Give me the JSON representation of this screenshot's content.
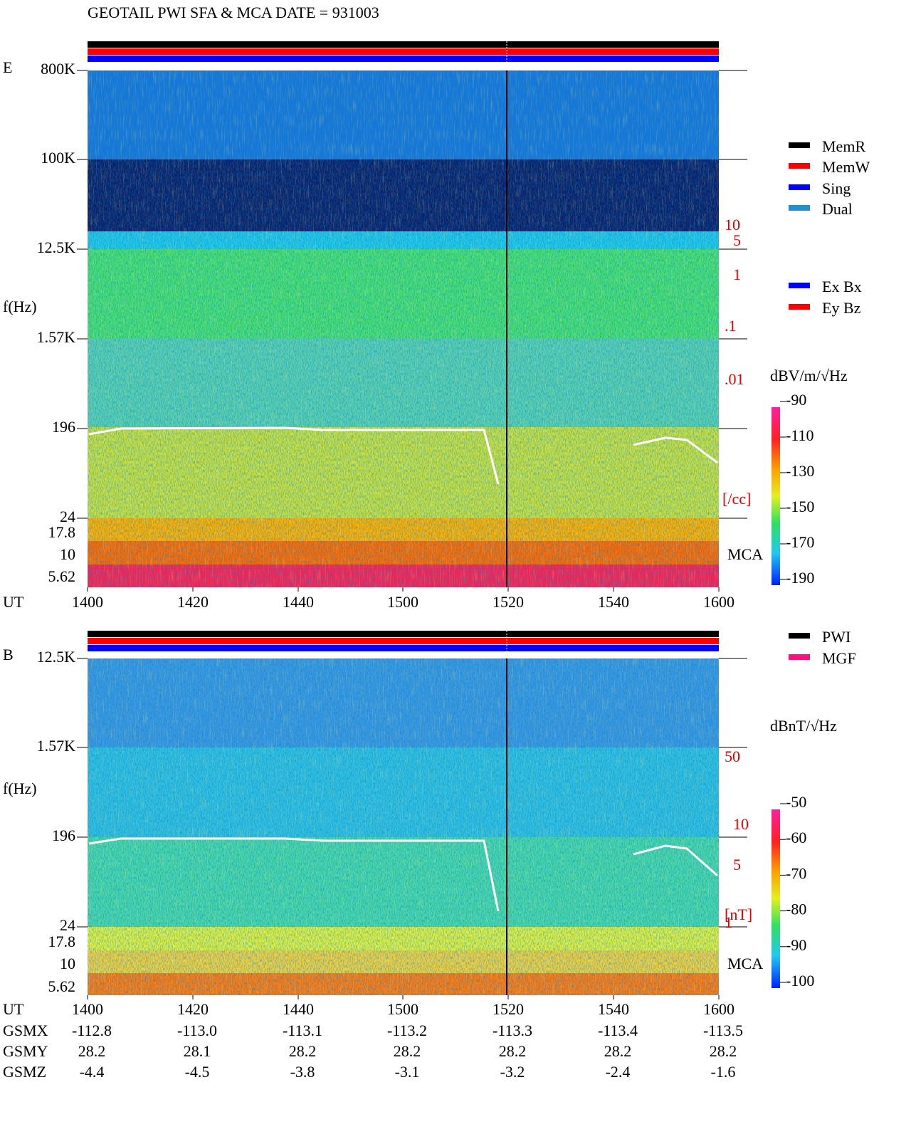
{
  "title": "GEOTAIL  PWI SFA & MCA   DATE = 931003",
  "panels": [
    {
      "label": "E",
      "y_label": "f(Hz)",
      "y_tick_labels": [
        "800K",
        "100K",
        "12.5K",
        "1.57K",
        "196",
        "24",
        "17.8",
        "10",
        "5.62"
      ],
      "x_label": "UT",
      "x_tick_labels": [
        "1400",
        "1420",
        "1440",
        "1500",
        "1520",
        "1540",
        "1600"
      ],
      "right_labels": [
        "10",
        "5",
        "1",
        ".1",
        ".01",
        "[/cc]"
      ],
      "mca_label": "MCA",
      "legend": [
        {
          "name": "MemR",
          "color": "#000000"
        },
        {
          "name": "MemW",
          "color": "#ff0000"
        },
        {
          "name": "Sing",
          "color": "#0000ff"
        },
        {
          "name": "Dual",
          "color": "#2090d0"
        },
        {
          "name": "Ex Bx",
          "color": "#0000ff"
        },
        {
          "name": "Ey Bz",
          "color": "#ff0000"
        }
      ],
      "colorbar_title": "dBV/m/√Hz",
      "colorbar_ticks": [
        -90,
        -110,
        -130,
        -150,
        -170,
        -190
      ]
    },
    {
      "label": "B",
      "y_label": "f(Hz)",
      "y_tick_labels": [
        "12.5K",
        "1.57K",
        "196",
        "24",
        "17.8",
        "10",
        "5.62"
      ],
      "x_label": "UT",
      "x_tick_labels": [
        "1400",
        "1420",
        "1440",
        "1500",
        "1520",
        "1540",
        "1600"
      ],
      "right_labels": [
        "50",
        "10",
        "5",
        "1",
        "[nT]"
      ],
      "mca_label": "MCA",
      "legend": [
        {
          "name": "PWI",
          "color": "#000000"
        },
        {
          "name": "MGF",
          "color": "#ff1080"
        }
      ],
      "colorbar_title": "dBnT/√Hz",
      "colorbar_ticks": [
        -50,
        -60,
        -70,
        -80,
        -90,
        -100
      ]
    }
  ],
  "orbit": {
    "rows": [
      {
        "name": "GSMX",
        "values": [
          "-112.8",
          "-113.0",
          "-113.1",
          "-113.2",
          "-113.3",
          "-113.4",
          "-113.5"
        ]
      },
      {
        "name": "GSMY",
        "values": [
          "28.2",
          "28.1",
          "28.2",
          "28.2",
          "28.2",
          "28.2",
          "28.2"
        ]
      },
      {
        "name": "GSMZ",
        "values": [
          "-4.4",
          "-4.5",
          "-3.8",
          "-3.1",
          "-3.2",
          "-2.4",
          "-1.6"
        ]
      }
    ]
  }
}
